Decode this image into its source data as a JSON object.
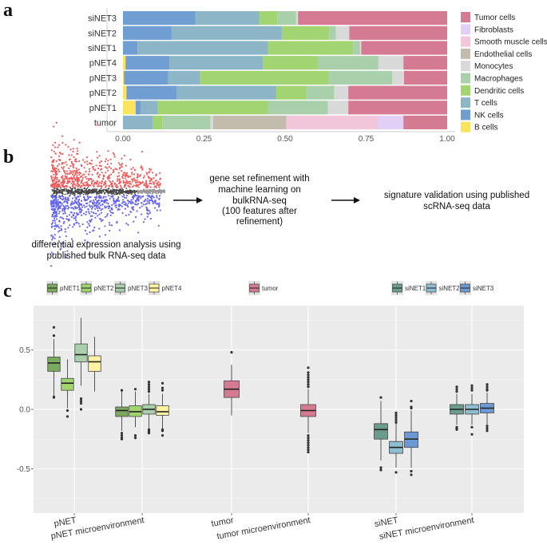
{
  "panel_labels": {
    "a": "a",
    "b": "b",
    "c": "c"
  },
  "chart_data": [
    {
      "type": "bar",
      "orientation": "horizontal-stacked",
      "categories": [
        "siNET3",
        "siNET2",
        "siNET1",
        "pNET4",
        "pNET3",
        "pNET2",
        "pNET1",
        "tumor"
      ],
      "xlim": [
        0,
        1
      ],
      "xticks": [
        "0.00",
        "0.25",
        "0.50",
        "0.75",
        "1.00"
      ],
      "legend_position": "right",
      "legend": [
        "Tumor cells",
        "Fibroblasts",
        "Smooth muscle cells",
        "Endothelial cells",
        "Monocytes",
        "Macrophages",
        "Dendritic cells",
        "T cells",
        "NK cells",
        "B cells"
      ],
      "stack_order": [
        "B cells",
        "NK cells",
        "T cells",
        "Dendritic cells",
        "Macrophages",
        "Monocytes",
        "Endothelial cells",
        "Smooth muscle cells",
        "Fibroblasts",
        "Tumor cells"
      ],
      "colors": {
        "Tumor cells": "#d47b93",
        "Fibroblasts": "#e2cff7",
        "Smooth muscle cells": "#f1c6da",
        "Endothelial cells": "#c3bbab",
        "Monocytes": "#d9d9d9",
        "Macrophages": "#a9d0aa",
        "Dendritic cells": "#a2d571",
        "T cells": "#8cb6c8",
        "NK cells": "#709ed3",
        "B cells": "#fbe35e"
      },
      "series": [
        {
          "name": "B cells",
          "values": [
            0,
            0,
            0,
            0.008,
            0.003,
            0.011,
            0.039,
            0
          ]
        },
        {
          "name": "NK cells",
          "values": [
            0.223,
            0.15,
            0.045,
            0.135,
            0.136,
            0.154,
            0.016,
            0
          ]
        },
        {
          "name": "T cells",
          "values": [
            0.197,
            0.34,
            0.403,
            0.289,
            0.099,
            0.308,
            0.053,
            0.091
          ]
        },
        {
          "name": "Dendritic cells",
          "values": [
            0.057,
            0.146,
            0.262,
            0.17,
            0.395,
            0.094,
            0.339,
            0.03
          ]
        },
        {
          "name": "Macrophages",
          "values": [
            0.057,
            0.021,
            0.021,
            0.186,
            0.198,
            0.085,
            0.185,
            0.149
          ]
        },
        {
          "name": "Monocytes",
          "values": [
            0.006,
            0.041,
            0.004,
            0.077,
            0.036,
            0.043,
            0.063,
            0.008
          ]
        },
        {
          "name": "Endothelial cells",
          "values": [
            0,
            0,
            0,
            0,
            0,
            0,
            0,
            0.226
          ]
        },
        {
          "name": "Smooth muscle cells",
          "values": [
            0,
            0,
            0,
            0,
            0,
            0,
            0,
            0.284
          ]
        },
        {
          "name": "Fibroblasts",
          "values": [
            0,
            0,
            0,
            0,
            0,
            0,
            0,
            0.077
          ]
        },
        {
          "name": "Tumor cells",
          "values": [
            0.46,
            0.302,
            0.265,
            0.135,
            0.133,
            0.305,
            0.305,
            0.135
          ]
        }
      ]
    },
    {
      "type": "boxplot",
      "categories": [
        "pNET",
        "pNET microenvironment",
        "tumor",
        "tumor microenvironment",
        "siNET",
        "siNET microenvironment"
      ],
      "ylim": [
        -0.87,
        0.87
      ],
      "yticks": [
        "0.5",
        "0.0",
        "-0.5"
      ],
      "ytick_values": [
        0.5,
        0,
        -0.5
      ],
      "grid": true,
      "legend_position": "top",
      "legend_groups": [
        [
          "pNET1",
          "pNET2",
          "pNET3",
          "pNET4"
        ],
        [
          "tumor"
        ],
        [
          "siNET1",
          "siNET2",
          "siNET3"
        ]
      ],
      "colors": {
        "pNET1": "#7aa95f",
        "pNET2": "#a0d46c",
        "pNET3": "#a9d0aa",
        "pNET4": "#fff3a3",
        "tumor": "#d47b93",
        "siNET1": "#6b9c8d",
        "siNET2": "#8cbdd1",
        "siNET3": "#6c99d4"
      },
      "boxes": [
        {
          "category": "pNET",
          "series": "pNET1",
          "whisker_low": 0.11,
          "q1": 0.32,
          "median": 0.39,
          "q3": 0.44,
          "whisker_high": 0.59,
          "outliers": [
            0.69,
            0.62,
            0.1,
            0.105
          ]
        },
        {
          "category": "pNET",
          "series": "pNET2",
          "whisker_low": 0.01,
          "q1": 0.16,
          "median": 0.22,
          "q3": 0.26,
          "whisker_high": 0.42,
          "outliers": [
            -0.01,
            -0.06
          ]
        },
        {
          "category": "pNET",
          "series": "pNET3",
          "whisker_low": 0.2,
          "q1": 0.4,
          "median": 0.46,
          "q3": 0.55,
          "whisker_high": 0.77,
          "outliers": [
            0.09,
            0.07,
            0.05,
            0.0
          ]
        },
        {
          "category": "pNET",
          "series": "pNET4",
          "whisker_low": 0.15,
          "q1": 0.32,
          "median": 0.4,
          "q3": 0.45,
          "whisker_high": 0.61,
          "outliers": []
        },
        {
          "category": "pNET microenvironment",
          "series": "pNET1",
          "whisker_low": -0.18,
          "q1": -0.06,
          "median": -0.01,
          "q3": 0.02,
          "whisker_high": 0.15,
          "outliers": [
            0.16,
            -0.2,
            -0.22,
            -0.24,
            -0.25
          ]
        },
        {
          "category": "pNET microenvironment",
          "series": "pNET2",
          "whisker_low": -0.15,
          "q1": -0.06,
          "median": -0.02,
          "q3": 0.03,
          "whisker_high": 0.15,
          "outliers": [
            0.17,
            -0.22,
            -0.24
          ]
        },
        {
          "category": "pNET microenvironment",
          "series": "pNET3",
          "whisker_low": -0.16,
          "q1": -0.04,
          "median": 0.0,
          "q3": 0.04,
          "whisker_high": 0.13,
          "outliers": [
            0.23,
            0.21,
            0.19,
            0.17,
            0.15,
            -0.17,
            -0.18,
            -0.19,
            -0.2
          ]
        },
        {
          "category": "pNET microenvironment",
          "series": "pNET4",
          "whisker_low": -0.16,
          "q1": -0.05,
          "median": -0.02,
          "q3": 0.03,
          "whisker_high": 0.13,
          "outliers": [
            0.22,
            0.18,
            0.16,
            -0.17,
            -0.18,
            -0.22
          ]
        },
        {
          "category": "tumor",
          "series": "tumor",
          "whisker_low": -0.05,
          "q1": 0.1,
          "median": 0.17,
          "q3": 0.24,
          "whisker_high": 0.375,
          "outliers": [
            0.48
          ]
        },
        {
          "category": "tumor microenvironment",
          "series": "tumor",
          "whisker_low": -0.2,
          "q1": -0.06,
          "median": -0.01,
          "q3": 0.04,
          "whisker_high": 0.17,
          "outliers": [
            0.35,
            0.31,
            0.29,
            0.27,
            0.25,
            0.23,
            0.21,
            0.19,
            -0.22,
            -0.24,
            -0.26,
            -0.28,
            -0.3,
            -0.32,
            -0.34,
            -0.36
          ]
        },
        {
          "category": "siNET",
          "series": "siNET1",
          "whisker_low": -0.43,
          "q1": -0.25,
          "median": -0.17,
          "q3": -0.12,
          "whisker_high": 0.07,
          "outliers": [
            0.1,
            -0.49,
            -0.51
          ]
        },
        {
          "category": "siNET",
          "series": "siNET2",
          "whisker_low": -0.49,
          "q1": -0.37,
          "median": -0.32,
          "q3": -0.27,
          "whisker_high": -0.12,
          "outliers": [
            -0.03,
            -0.05,
            -0.07,
            -0.09,
            -0.11,
            -0.53
          ]
        },
        {
          "category": "siNET",
          "series": "siNET3",
          "whisker_low": -0.49,
          "q1": -0.32,
          "median": -0.25,
          "q3": -0.19,
          "whisker_high": -0.01,
          "outliers": [
            0.07,
            0.01,
            0.02,
            -0.52,
            -0.55
          ]
        },
        {
          "category": "siNET microenvironment",
          "series": "siNET1",
          "whisker_low": -0.13,
          "q1": -0.04,
          "median": 0.0,
          "q3": 0.04,
          "whisker_high": 0.13,
          "outliers": [
            0.19,
            0.17,
            0.15,
            -0.15,
            -0.16,
            -0.17
          ]
        },
        {
          "category": "siNET microenvironment",
          "series": "siNET2",
          "whisker_low": -0.13,
          "q1": -0.04,
          "median": 0.0,
          "q3": 0.04,
          "whisker_high": 0.13,
          "outliers": [
            0.2,
            0.18,
            0.16,
            -0.15,
            -0.21
          ]
        },
        {
          "category": "siNET microenvironment",
          "series": "siNET3",
          "whisker_low": -0.13,
          "q1": -0.03,
          "median": 0.01,
          "q3": 0.05,
          "whisker_high": 0.14,
          "outliers": [
            0.21,
            0.19,
            0.17,
            0.16,
            -0.14,
            -0.16,
            -0.18
          ]
        }
      ]
    }
  ],
  "workflow": {
    "step1_lines": [
      "differential expression analysis using",
      "published bulk RNA-seq data"
    ],
    "step2_lines": [
      "gene set refinement with",
      "machine learning on",
      "bulkRNA-seq",
      "(100 features after",
      "refinement)"
    ],
    "step3_lines": [
      "signature validation using published",
      "scRNA-seq data"
    ],
    "ma_plot_colors": {
      "up": "#f05a5a",
      "down": "#6464f0",
      "neutral": "#444444"
    }
  }
}
